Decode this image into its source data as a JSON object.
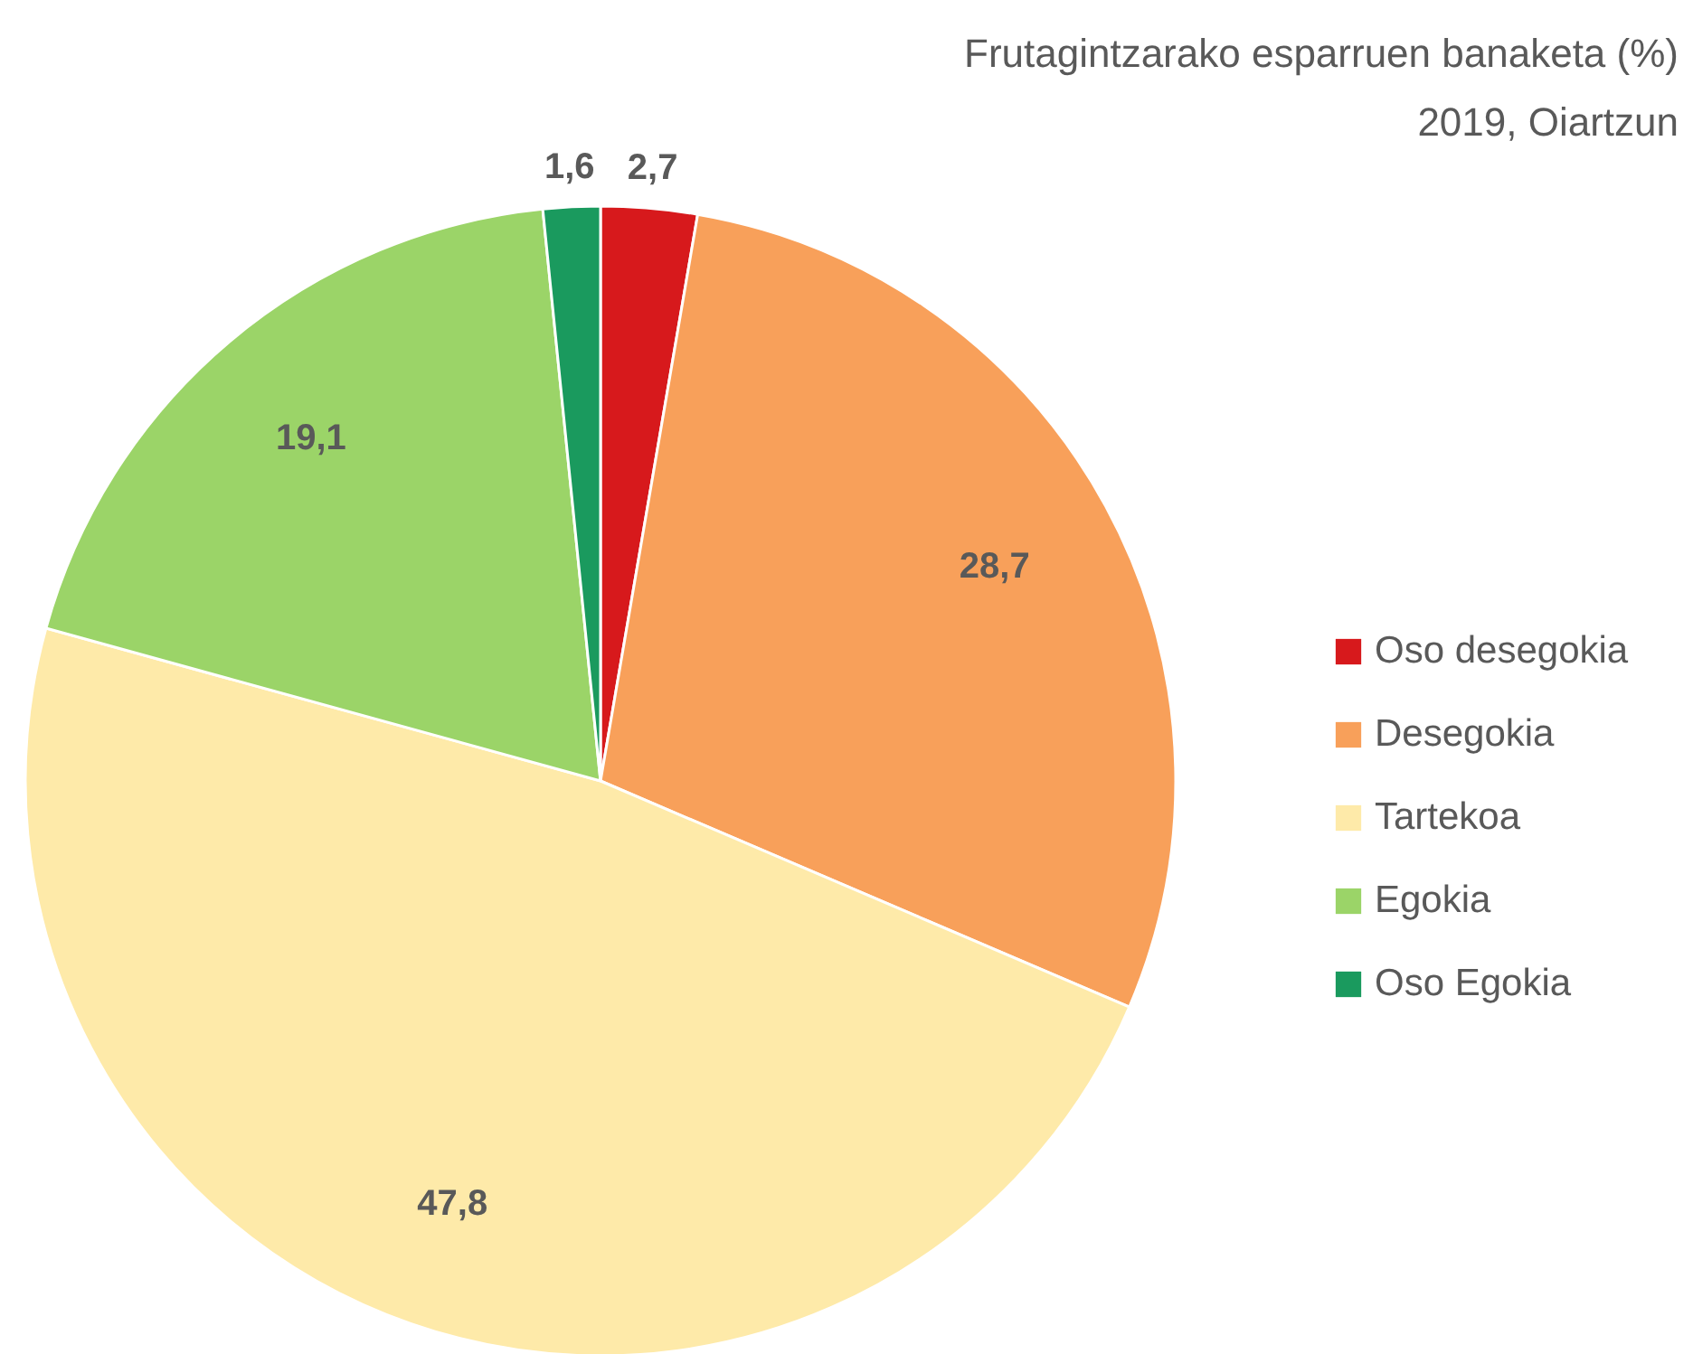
{
  "chart_data": {
    "type": "pie",
    "title": "Frutagintzarako esparruen banaketa (%)",
    "subtitle": "2019, Oiartzun",
    "categories": [
      "Oso desegokia",
      "Desegokia",
      "Tartekoa",
      "Egokia",
      "Oso Egokia"
    ],
    "values": [
      2.7,
      28.7,
      47.8,
      19.1,
      1.6
    ],
    "value_labels": [
      "2,7",
      "28,7",
      "47,8",
      "19,1",
      "1,6"
    ],
    "colors": [
      "#d7191c",
      "#f8a05a",
      "#feeaa9",
      "#9bd468",
      "#1a9a5e"
    ],
    "legend": "right"
  }
}
